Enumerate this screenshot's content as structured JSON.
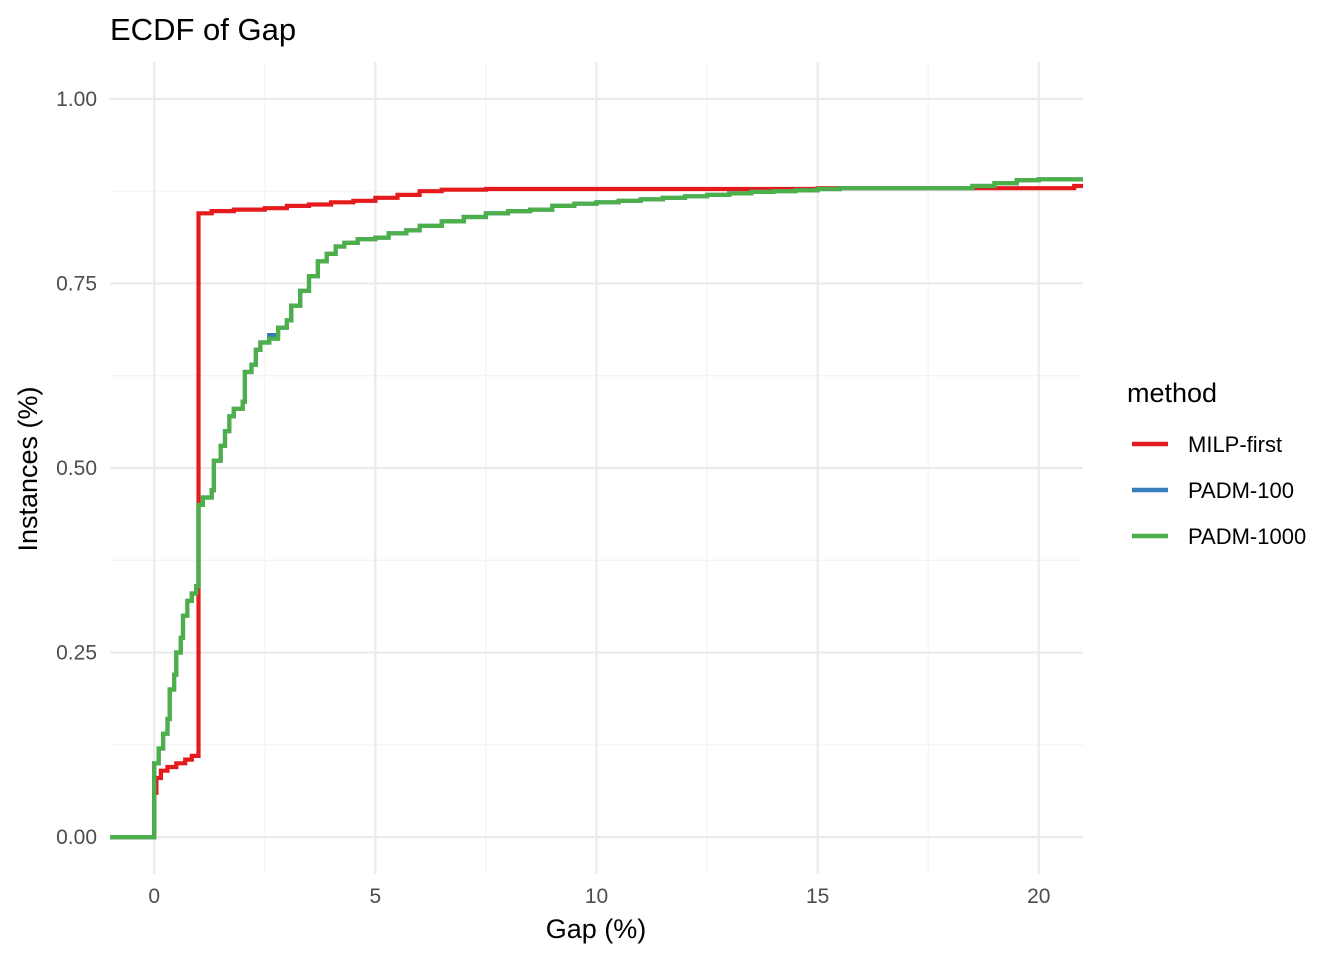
{
  "chart_data": {
    "type": "line",
    "title": "ECDF of Gap",
    "xlabel": "Gap (%)",
    "ylabel": "Instances (%)",
    "xlim": [
      -1,
      21
    ],
    "ylim": [
      -0.05,
      1.05
    ],
    "x_ticks": [
      0,
      5,
      10,
      15,
      20
    ],
    "x_tick_labels": [
      "0",
      "5",
      "10",
      "15",
      "20"
    ],
    "y_ticks": [
      0,
      0.25,
      0.5,
      0.75,
      1.0
    ],
    "y_tick_labels": [
      "0.00",
      "0.25",
      "0.50",
      "0.75",
      "1.00"
    ],
    "x_minor": [
      2.5,
      7.5,
      12.5,
      17.5
    ],
    "y_minor": [
      0.125,
      0.375,
      0.625,
      0.875
    ],
    "grid": true,
    "legend": {
      "title": "method",
      "position": "right"
    },
    "series": [
      {
        "name": "MILP-first",
        "color": "#E41A1C",
        "points": [
          [
            -1,
            0
          ],
          [
            0,
            0
          ],
          [
            0,
            0.06
          ],
          [
            0.05,
            0.08
          ],
          [
            0.15,
            0.09
          ],
          [
            0.3,
            0.095
          ],
          [
            0.5,
            0.1
          ],
          [
            0.7,
            0.105
          ],
          [
            0.85,
            0.11
          ],
          [
            1.0,
            0.115
          ],
          [
            1.0,
            0.845
          ],
          [
            1.3,
            0.848
          ],
          [
            1.8,
            0.85
          ],
          [
            2.5,
            0.852
          ],
          [
            3.0,
            0.855
          ],
          [
            3.5,
            0.857
          ],
          [
            4.0,
            0.86
          ],
          [
            4.5,
            0.862
          ],
          [
            5.0,
            0.866
          ],
          [
            5.5,
            0.87
          ],
          [
            6.0,
            0.875
          ],
          [
            6.5,
            0.877
          ],
          [
            7.5,
            0.878
          ],
          [
            10,
            0.878
          ],
          [
            15,
            0.879
          ],
          [
            18,
            0.879
          ],
          [
            20.8,
            0.879
          ],
          [
            20.8,
            0.882
          ],
          [
            21,
            0.882
          ]
        ]
      },
      {
        "name": "PADM-100",
        "color": "#377EB8",
        "points": [
          [
            -1,
            0
          ],
          [
            0,
            0
          ],
          [
            0,
            0.1
          ],
          [
            0.1,
            0.12
          ],
          [
            0.2,
            0.14
          ],
          [
            0.3,
            0.16
          ],
          [
            0.35,
            0.2
          ],
          [
            0.45,
            0.22
          ],
          [
            0.5,
            0.25
          ],
          [
            0.6,
            0.27
          ],
          [
            0.65,
            0.3
          ],
          [
            0.75,
            0.32
          ],
          [
            0.85,
            0.33
          ],
          [
            0.95,
            0.34
          ],
          [
            1.0,
            0.45
          ],
          [
            1.1,
            0.46
          ],
          [
            1.3,
            0.47
          ],
          [
            1.35,
            0.51
          ],
          [
            1.5,
            0.53
          ],
          [
            1.6,
            0.55
          ],
          [
            1.7,
            0.57
          ],
          [
            1.8,
            0.58
          ],
          [
            2.0,
            0.59
          ],
          [
            2.05,
            0.63
          ],
          [
            2.2,
            0.64
          ],
          [
            2.3,
            0.66
          ],
          [
            2.4,
            0.67
          ],
          [
            2.6,
            0.68
          ],
          [
            2.8,
            0.69
          ],
          [
            3.0,
            0.7
          ],
          [
            3.1,
            0.72
          ],
          [
            3.3,
            0.74
          ],
          [
            3.5,
            0.76
          ],
          [
            3.7,
            0.78
          ],
          [
            3.9,
            0.79
          ],
          [
            4.1,
            0.8
          ],
          [
            4.3,
            0.805
          ],
          [
            4.6,
            0.81
          ],
          [
            5.0,
            0.812
          ],
          [
            5.3,
            0.818
          ],
          [
            5.7,
            0.822
          ],
          [
            6.0,
            0.828
          ],
          [
            6.5,
            0.834
          ],
          [
            7.0,
            0.84
          ],
          [
            7.5,
            0.845
          ],
          [
            8.0,
            0.848
          ],
          [
            8.5,
            0.85
          ],
          [
            9.0,
            0.855
          ],
          [
            9.5,
            0.858
          ],
          [
            10.0,
            0.86
          ],
          [
            10.5,
            0.862
          ],
          [
            11,
            0.864
          ],
          [
            11.5,
            0.866
          ],
          [
            12,
            0.868
          ],
          [
            12.5,
            0.87
          ],
          [
            13,
            0.872
          ],
          [
            13.5,
            0.874
          ],
          [
            14,
            0.875
          ],
          [
            14.5,
            0.876
          ],
          [
            15,
            0.878
          ],
          [
            15.5,
            0.879
          ],
          [
            16,
            0.879
          ],
          [
            17,
            0.879
          ],
          [
            18,
            0.879
          ],
          [
            18.5,
            0.882
          ],
          [
            19,
            0.886
          ],
          [
            19.5,
            0.89
          ],
          [
            20,
            0.891
          ],
          [
            21,
            0.891
          ]
        ]
      },
      {
        "name": "PADM-1000",
        "color": "#4DAF4A",
        "points": [
          [
            -1,
            0
          ],
          [
            0,
            0
          ],
          [
            0,
            0.1
          ],
          [
            0.1,
            0.12
          ],
          [
            0.2,
            0.14
          ],
          [
            0.3,
            0.16
          ],
          [
            0.35,
            0.2
          ],
          [
            0.45,
            0.22
          ],
          [
            0.5,
            0.25
          ],
          [
            0.6,
            0.27
          ],
          [
            0.65,
            0.3
          ],
          [
            0.75,
            0.32
          ],
          [
            0.85,
            0.33
          ],
          [
            0.95,
            0.34
          ],
          [
            1.0,
            0.45
          ],
          [
            1.1,
            0.46
          ],
          [
            1.3,
            0.47
          ],
          [
            1.35,
            0.51
          ],
          [
            1.5,
            0.53
          ],
          [
            1.6,
            0.55
          ],
          [
            1.7,
            0.57
          ],
          [
            1.8,
            0.58
          ],
          [
            2.0,
            0.59
          ],
          [
            2.05,
            0.63
          ],
          [
            2.2,
            0.64
          ],
          [
            2.3,
            0.66
          ],
          [
            2.4,
            0.67
          ],
          [
            2.6,
            0.675
          ],
          [
            2.8,
            0.69
          ],
          [
            3.0,
            0.7
          ],
          [
            3.1,
            0.72
          ],
          [
            3.3,
            0.74
          ],
          [
            3.5,
            0.76
          ],
          [
            3.7,
            0.78
          ],
          [
            3.9,
            0.79
          ],
          [
            4.1,
            0.8
          ],
          [
            4.3,
            0.805
          ],
          [
            4.6,
            0.81
          ],
          [
            5.0,
            0.812
          ],
          [
            5.3,
            0.818
          ],
          [
            5.7,
            0.822
          ],
          [
            6.0,
            0.828
          ],
          [
            6.5,
            0.834
          ],
          [
            7.0,
            0.84
          ],
          [
            7.5,
            0.845
          ],
          [
            8.0,
            0.848
          ],
          [
            8.5,
            0.85
          ],
          [
            9.0,
            0.855
          ],
          [
            9.5,
            0.858
          ],
          [
            10.0,
            0.86
          ],
          [
            10.5,
            0.862
          ],
          [
            11,
            0.864
          ],
          [
            11.5,
            0.866
          ],
          [
            12,
            0.868
          ],
          [
            12.5,
            0.87
          ],
          [
            13,
            0.872
          ],
          [
            13.5,
            0.874
          ],
          [
            14,
            0.875
          ],
          [
            14.5,
            0.876
          ],
          [
            15,
            0.878
          ],
          [
            15.5,
            0.879
          ],
          [
            16,
            0.879
          ],
          [
            17,
            0.879
          ],
          [
            18,
            0.879
          ],
          [
            18.5,
            0.882
          ],
          [
            19,
            0.886
          ],
          [
            19.5,
            0.89
          ],
          [
            20,
            0.891
          ],
          [
            21,
            0.891
          ]
        ]
      }
    ]
  }
}
